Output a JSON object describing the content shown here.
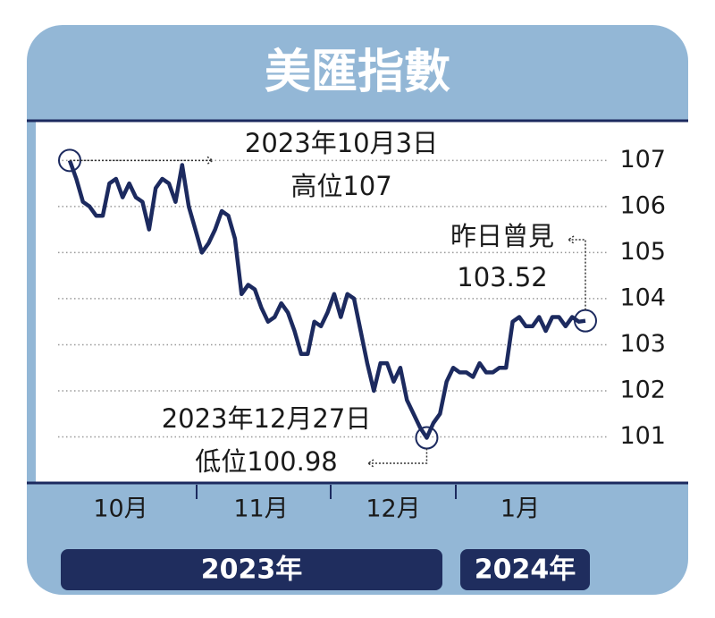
{
  "chart_data": {
    "type": "line",
    "title": "美匯指數",
    "color": "#1c2a5f",
    "values": [
      107.0,
      106.6,
      106.1,
      106.0,
      105.8,
      105.8,
      106.5,
      106.6,
      106.2,
      106.5,
      106.2,
      106.1,
      105.5,
      106.4,
      106.6,
      106.5,
      106.1,
      106.9,
      106.0,
      105.5,
      105.0,
      105.2,
      105.5,
      105.9,
      105.8,
      105.3,
      104.1,
      104.3,
      104.2,
      103.8,
      103.5,
      103.6,
      103.9,
      103.7,
      103.3,
      102.8,
      102.8,
      103.5,
      103.4,
      103.7,
      104.1,
      103.6,
      104.1,
      104.0,
      103.3,
      102.6,
      102.0,
      102.6,
      102.6,
      102.2,
      102.5,
      101.8,
      101.5,
      101.2,
      100.98,
      101.3,
      101.5,
      102.2,
      102.5,
      102.4,
      102.4,
      102.3,
      102.6,
      102.4,
      102.4,
      102.5,
      102.5,
      103.5,
      103.6,
      103.4,
      103.4,
      103.6,
      103.3,
      103.6,
      103.6,
      103.4,
      103.6,
      103.5,
      103.52
    ],
    "ylim": [
      100,
      107.9
    ],
    "yticks": [
      101,
      102,
      103,
      104,
      105,
      106,
      107
    ],
    "grid": true,
    "months": [
      "10月",
      "11月",
      "12月",
      "1月"
    ],
    "years": [
      "2023年",
      "2024年"
    ],
    "annotations": {
      "high": [
        "2023年10月3日",
        "高位107"
      ],
      "latest": [
        "昨日曾見",
        "103.52"
      ],
      "low": [
        "2023年12月27日",
        "低位100.98"
      ]
    }
  }
}
